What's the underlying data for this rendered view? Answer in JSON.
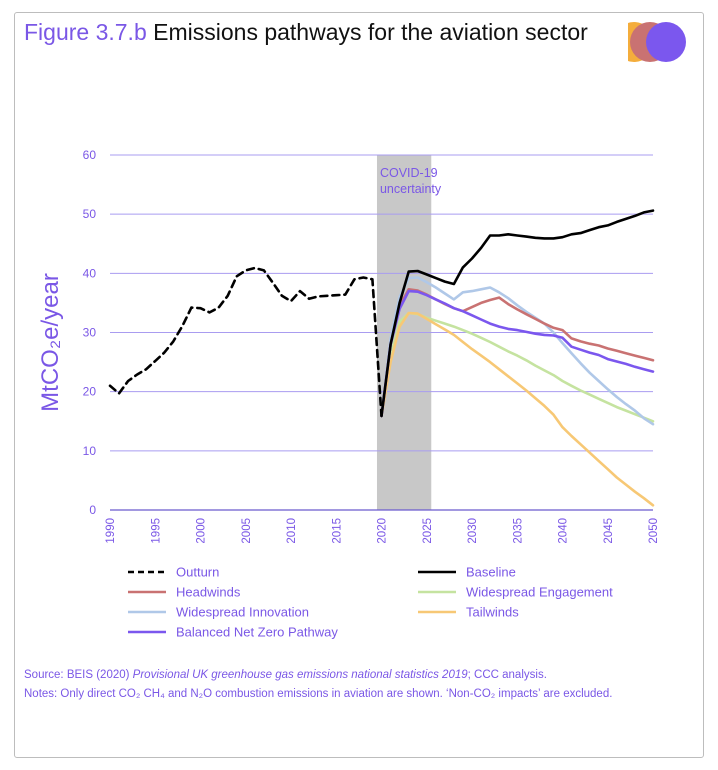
{
  "title": {
    "figure_label": "Figure 3.7.b",
    "text": "Emissions pathways for the aviation sector"
  },
  "colors": {
    "accent": "#7a57e6",
    "logo": [
      "#f4ad3c",
      "#c97272",
      "#7b57ee"
    ]
  },
  "chart_data": {
    "type": "line",
    "ylabel": "MtCO₂e/year",
    "ylim": [
      0,
      60
    ],
    "yticks": [
      "0",
      "10",
      "20",
      "30",
      "40",
      "50",
      "60"
    ],
    "xlim": [
      1990,
      2050
    ],
    "xticks": [
      "1990",
      "1995",
      "2000",
      "2005",
      "2010",
      "2015",
      "2020",
      "2025",
      "2030",
      "2035",
      "2040",
      "2045",
      "2050"
    ],
    "grid": "horizontal",
    "shaded_region": {
      "x": [
        2019.5,
        2025.5
      ],
      "label": "COVID-19 uncertainty"
    },
    "legend_position": "bottom",
    "series": [
      {
        "name": "Outturn",
        "color": "#000000",
        "dash": true,
        "x": [
          1990,
          1991,
          1992,
          1993,
          1994,
          1995,
          1996,
          1997,
          1998,
          1999,
          2000,
          2001,
          2002,
          2003,
          2004,
          2005,
          2006,
          2007,
          2008,
          2009,
          2010,
          2011,
          2012,
          2013,
          2014,
          2015,
          2016,
          2017,
          2018,
          2019,
          2020
        ],
        "y": [
          21,
          19.7,
          21.8,
          22.9,
          23.8,
          25.2,
          26.6,
          28.5,
          31.1,
          34.2,
          34.1,
          33.4,
          34.2,
          36.2,
          39.5,
          40.5,
          40.9,
          40.5,
          38.4,
          36.2,
          35.3,
          37,
          35.7,
          36.1,
          36.2,
          36.3,
          36.4,
          39,
          39.3,
          39,
          15.9
        ]
      },
      {
        "name": "Baseline",
        "color": "#000000",
        "x": [
          2020,
          2021,
          2022,
          2023,
          2024,
          2025,
          2026,
          2027,
          2028,
          2029,
          2030,
          2031,
          2032,
          2033,
          2034,
          2035,
          2036,
          2037,
          2038,
          2039,
          2040,
          2041,
          2042,
          2043,
          2044,
          2045,
          2046,
          2047,
          2048,
          2049,
          2050
        ],
        "y": [
          15.9,
          28,
          35,
          40.3,
          40.4,
          39.8,
          39.2,
          38.6,
          38.2,
          41,
          42.5,
          44.3,
          46.4,
          46.4,
          46.6,
          46.4,
          46.2,
          46,
          45.9,
          45.9,
          46.1,
          46.6,
          46.8,
          47.3,
          47.8,
          48.1,
          48.7,
          49.2,
          49.7,
          50.3,
          50.6
        ]
      },
      {
        "name": "Headwinds",
        "color": "#c97272",
        "x": [
          2020,
          2021,
          2022,
          2023,
          2024,
          2025,
          2026,
          2027,
          2028,
          2029,
          2030,
          2031,
          2032,
          2033,
          2034,
          2035,
          2036,
          2037,
          2038,
          2039,
          2040,
          2041,
          2042,
          2043,
          2044,
          2045,
          2046,
          2047,
          2048,
          2049,
          2050
        ],
        "y": [
          15.9,
          28,
          34.5,
          37.3,
          37.1,
          36.4,
          35.6,
          34.8,
          34.1,
          33.6,
          34.3,
          35,
          35.5,
          35.9,
          34.8,
          33.9,
          33.1,
          32.3,
          31.5,
          30.8,
          30.4,
          29,
          28.5,
          28.1,
          27.8,
          27.3,
          26.9,
          26.5,
          26.1,
          25.7,
          25.3
        ]
      },
      {
        "name": "Widespread Engagement",
        "color": "#c5e3a0",
        "x": [
          2020,
          2021,
          2022,
          2023,
          2024,
          2025,
          2026,
          2027,
          2028,
          2029,
          2030,
          2031,
          2032,
          2033,
          2034,
          2035,
          2036,
          2037,
          2038,
          2039,
          2040,
          2041,
          2042,
          2043,
          2044,
          2045,
          2046,
          2047,
          2048,
          2049,
          2050
        ],
        "y": [
          15.9,
          26,
          31.8,
          33.3,
          33.1,
          32.5,
          32,
          31.5,
          31,
          30.4,
          29.8,
          29.1,
          28.4,
          27.6,
          26.8,
          26.1,
          25.3,
          24.4,
          23.6,
          22.8,
          21.8,
          21,
          20.2,
          19.5,
          18.8,
          18.1,
          17.4,
          16.8,
          16.2,
          15.6,
          15
        ]
      },
      {
        "name": "Widespread Innovation",
        "color": "#b0c8e8",
        "x": [
          2020,
          2021,
          2022,
          2023,
          2024,
          2025,
          2026,
          2027,
          2028,
          2029,
          2030,
          2031,
          2032,
          2033,
          2034,
          2035,
          2036,
          2037,
          2038,
          2039,
          2040,
          2041,
          2042,
          2043,
          2044,
          2045,
          2046,
          2047,
          2048,
          2049,
          2050
        ],
        "y": [
          15.9,
          29,
          36,
          39.2,
          39.3,
          38.5,
          37.6,
          36.6,
          35.6,
          36.8,
          37,
          37.3,
          37.6,
          36.8,
          35.8,
          34.6,
          33.5,
          32.5,
          31.5,
          30,
          28.2,
          26.5,
          24.8,
          23.2,
          21.8,
          20.4,
          19.1,
          17.9,
          16.8,
          15.5,
          14.5
        ]
      },
      {
        "name": "Tailwinds",
        "color": "#f7c875",
        "x": [
          2020,
          2021,
          2022,
          2023,
          2024,
          2025,
          2026,
          2027,
          2028,
          2029,
          2030,
          2031,
          2032,
          2033,
          2034,
          2035,
          2036,
          2037,
          2038,
          2039,
          2040,
          2041,
          2042,
          2043,
          2044,
          2045,
          2046,
          2047,
          2048,
          2049,
          2050
        ],
        "y": [
          15.9,
          25,
          31,
          33.3,
          33.2,
          32.3,
          31.4,
          30.5,
          29.6,
          28.4,
          27.2,
          26.1,
          25,
          23.8,
          22.6,
          21.4,
          20.2,
          18.9,
          17.6,
          16.1,
          14,
          12.5,
          11.1,
          9.7,
          8.3,
          6.9,
          5.5,
          4.3,
          3.1,
          2,
          0.8
        ]
      },
      {
        "name": "Balanced Net Zero Pathway",
        "color": "#7b57ee",
        "x": [
          2020,
          2021,
          2022,
          2023,
          2024,
          2025,
          2026,
          2027,
          2028,
          2029,
          2030,
          2031,
          2032,
          2033,
          2034,
          2035,
          2036,
          2037,
          2038,
          2039,
          2040,
          2041,
          2042,
          2043,
          2044,
          2045,
          2046,
          2047,
          2048,
          2049,
          2050
        ],
        "y": [
          15.9,
          28,
          34,
          37,
          36.9,
          36.3,
          35.6,
          34.9,
          34.1,
          33.6,
          32.9,
          32.2,
          31.5,
          31,
          30.6,
          30.4,
          30.1,
          29.8,
          29.6,
          29.5,
          29.1,
          27.6,
          27.1,
          26.6,
          26.2,
          25.5,
          25.1,
          24.7,
          24.2,
          23.8,
          23.4
        ]
      }
    ]
  },
  "source": {
    "prefix": "Source: BEIS (2020) ",
    "italic": "Provisional UK greenhouse gas emissions national statistics 2019",
    "suffix": "; CCC analysis."
  },
  "notes": "Notes: Only direct CO₂ CH₄ and N₂O combustion emissions in aviation are shown. ‘Non-CO₂ impacts’ are excluded."
}
